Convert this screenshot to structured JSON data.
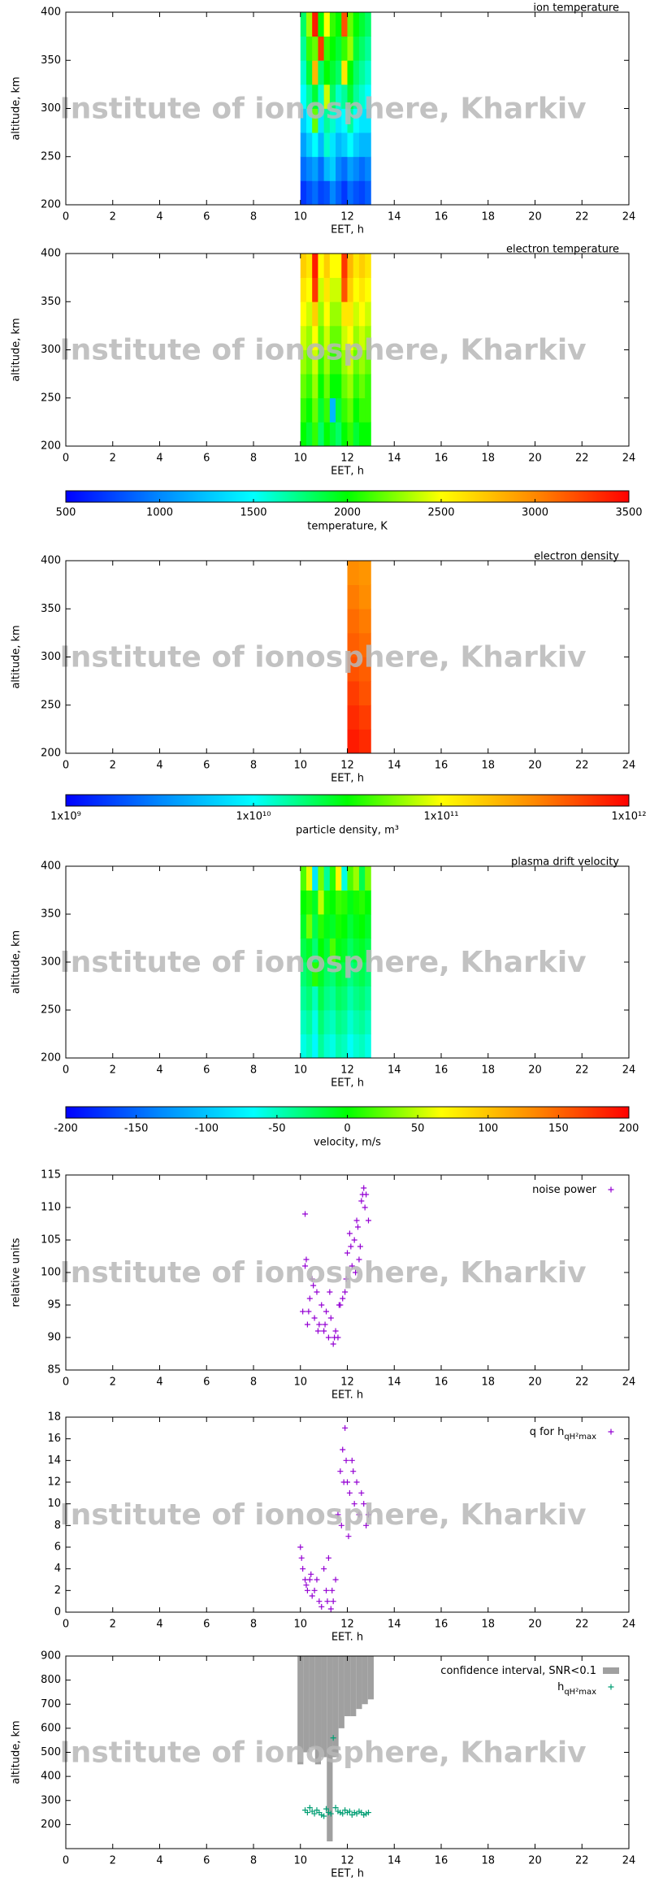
{
  "watermark": "Institute of ionosphere, Kharkiv",
  "chart_data": [
    {
      "type": "heatmap",
      "title": "ion temperature",
      "xlabel": "EET, h",
      "ylabel": "altitude, km",
      "xlim": [
        0,
        24
      ],
      "xticks": [
        0,
        2,
        4,
        6,
        8,
        10,
        12,
        14,
        16,
        18,
        20,
        22,
        24
      ],
      "ylim": [
        200,
        400
      ],
      "yticks": [
        200,
        250,
        300,
        350,
        400
      ],
      "clim": [
        500,
        3500
      ],
      "log_color": false,
      "colormap": [
        "#0000ff",
        "#0088ff",
        "#00ffff",
        "#00ff00",
        "#ffff00",
        "#ff8800",
        "#ff0000"
      ],
      "x_edges": [
        10,
        10.25,
        10.5,
        10.75,
        11,
        11.25,
        11.5,
        11.75,
        12,
        12.25,
        12.5,
        12.75,
        13
      ],
      "y_edges": [
        200,
        225,
        250,
        275,
        300,
        325,
        350,
        375,
        400
      ],
      "values": [
        [
          700,
          800,
          900,
          750,
          800,
          1000,
          850,
          700,
          900,
          800,
          750,
          850
        ],
        [
          900,
          1000,
          1100,
          900,
          1200,
          1300,
          1000,
          900,
          1100,
          1000,
          900,
          1000
        ],
        [
          1100,
          1300,
          1500,
          1200,
          1600,
          1400,
          1200,
          1300,
          1500,
          1300,
          1200,
          1200
        ],
        [
          1300,
          1500,
          2200,
          1400,
          1700,
          1600,
          1400,
          1500,
          1700,
          1500,
          1400,
          1400
        ],
        [
          1500,
          1700,
          1900,
          1600,
          2400,
          1800,
          1600,
          1700,
          1900,
          1700,
          1600,
          1500
        ],
        [
          1600,
          1900,
          2800,
          1800,
          2000,
          1900,
          1800,
          2600,
          2000,
          1800,
          1700,
          1600
        ],
        [
          1700,
          2100,
          2200,
          3300,
          2100,
          2000,
          1900,
          2100,
          2300,
          1900,
          1800,
          1700
        ],
        [
          1800,
          2300,
          3400,
          2000,
          2500,
          2100,
          2000,
          3200,
          2200,
          2000,
          1900,
          1800
        ]
      ]
    },
    {
      "type": "heatmap",
      "title": "electron temperature",
      "xlabel": "EET, h",
      "ylabel": "altitude, km",
      "xlim": [
        0,
        24
      ],
      "xticks": [
        0,
        2,
        4,
        6,
        8,
        10,
        12,
        14,
        16,
        18,
        20,
        22,
        24
      ],
      "ylim": [
        200,
        400
      ],
      "yticks": [
        200,
        250,
        300,
        350,
        400
      ],
      "clim": [
        500,
        3500
      ],
      "log_color": false,
      "colormap": [
        "#0000ff",
        "#0088ff",
        "#00ffff",
        "#00ff00",
        "#ffff00",
        "#ff8800",
        "#ff0000"
      ],
      "colorbar": {
        "label": "temperature, K",
        "ticks": [
          500,
          1000,
          1500,
          2000,
          2500,
          3000,
          3500
        ]
      },
      "x_edges": [
        10,
        10.25,
        10.5,
        10.75,
        11,
        11.25,
        11.5,
        11.75,
        12,
        12.25,
        12.5,
        12.75,
        13
      ],
      "y_edges": [
        200,
        225,
        250,
        275,
        300,
        325,
        350,
        375,
        400
      ],
      "values": [
        [
          2000,
          1900,
          2100,
          1800,
          2000,
          1900,
          1800,
          2000,
          2100,
          1900,
          2000,
          2000
        ],
        [
          2100,
          2000,
          2200,
          1900,
          2100,
          1200,
          1900,
          2100,
          2200,
          2000,
          2100,
          2100
        ],
        [
          2200,
          2100,
          2300,
          2000,
          2200,
          2000,
          2000,
          2200,
          2300,
          2100,
          2200,
          2100
        ],
        [
          2300,
          2200,
          2400,
          2100,
          2300,
          2100,
          2100,
          2300,
          2400,
          2200,
          2300,
          2200
        ],
        [
          2400,
          2300,
          2500,
          2200,
          2400,
          2200,
          2200,
          2400,
          2500,
          2300,
          2400,
          2300
        ],
        [
          2500,
          2400,
          2700,
          2300,
          2500,
          2300,
          2300,
          2600,
          2600,
          2400,
          2500,
          2400
        ],
        [
          2600,
          2500,
          3300,
          2400,
          2600,
          2400,
          2400,
          3200,
          2700,
          2500,
          2600,
          2500
        ],
        [
          2700,
          2600,
          3400,
          2500,
          2700,
          2500,
          2500,
          3300,
          2800,
          2600,
          2700,
          2600
        ]
      ]
    },
    {
      "type": "heatmap",
      "title": "electron density",
      "xlabel": "EET, h",
      "ylabel": "altitude, km",
      "xlim": [
        0,
        24
      ],
      "xticks": [
        0,
        2,
        4,
        6,
        8,
        10,
        12,
        14,
        16,
        18,
        20,
        22,
        24
      ],
      "ylim": [
        200,
        400
      ],
      "yticks": [
        200,
        250,
        300,
        350,
        400
      ],
      "clim": [
        1000000000.0,
        1000000000000.0
      ],
      "log_color": true,
      "colormap": [
        "#0000ff",
        "#0088ff",
        "#00ffff",
        "#00ff00",
        "#ffff00",
        "#ff8800",
        "#ff0000"
      ],
      "colorbar": {
        "label": "particle density, m³",
        "ticks": [
          {
            "value": 1000000000.0,
            "label": "1x10⁹"
          },
          {
            "value": 10000000000.0,
            "label": "1x10¹⁰"
          },
          {
            "value": 100000000000.0,
            "label": "1x10¹¹"
          },
          {
            "value": 1000000000000.0,
            "label": "1x10¹²"
          }
        ]
      },
      "x_edges": [
        12,
        12.25,
        12.5,
        12.75,
        13
      ],
      "y_edges": [
        200,
        225,
        250,
        275,
        300,
        325,
        350,
        375,
        400
      ],
      "values": [
        [
          800000000000.0,
          800000000000.0,
          700000000000.0,
          700000000000.0
        ],
        [
          700000000000.0,
          700000000000.0,
          600000000000.0,
          600000000000.0
        ],
        [
          600000000000.0,
          600000000000.0,
          500000000000.0,
          500000000000.0
        ],
        [
          500000000000.0,
          500000000000.0,
          450000000000.0,
          450000000000.0
        ],
        [
          450000000000.0,
          450000000000.0,
          400000000000.0,
          400000000000.0
        ],
        [
          400000000000.0,
          400000000000.0,
          350000000000.0,
          350000000000.0
        ],
        [
          350000000000.0,
          350000000000.0,
          300000000000.0,
          300000000000.0
        ],
        [
          300000000000.0,
          300000000000.0,
          280000000000.0,
          280000000000.0
        ]
      ]
    },
    {
      "type": "heatmap",
      "title": "plasma drift velocity",
      "xlabel": "EET, h",
      "ylabel": "altitude, km",
      "xlim": [
        0,
        24
      ],
      "xticks": [
        0,
        2,
        4,
        6,
        8,
        10,
        12,
        14,
        16,
        18,
        20,
        22,
        24
      ],
      "ylim": [
        200,
        400
      ],
      "yticks": [
        200,
        250,
        300,
        350,
        400
      ],
      "clim": [
        -200,
        200
      ],
      "log_color": false,
      "colormap": [
        "#0000ff",
        "#0088ff",
        "#00ffff",
        "#00ff00",
        "#ffff00",
        "#ff8800",
        "#ff0000"
      ],
      "colorbar": {
        "label": "velocity, m/s",
        "ticks": [
          -200,
          -150,
          -100,
          -50,
          0,
          50,
          100,
          150,
          200
        ]
      },
      "x_edges": [
        10,
        10.25,
        10.5,
        10.75,
        11,
        11.25,
        11.5,
        11.75,
        12,
        12.25,
        12.5,
        12.75,
        13
      ],
      "y_edges": [
        200,
        225,
        250,
        275,
        300,
        325,
        350,
        375,
        400
      ],
      "values": [
        [
          -60,
          -50,
          -70,
          -40,
          -55,
          -60,
          -45,
          -50,
          -65,
          -55,
          -50,
          -60
        ],
        [
          -50,
          -40,
          -60,
          -30,
          -45,
          -50,
          -35,
          -40,
          -55,
          -45,
          -40,
          -50
        ],
        [
          -40,
          -30,
          -50,
          -20,
          -35,
          -40,
          -25,
          -30,
          -45,
          -35,
          -30,
          -40
        ],
        [
          -30,
          -20,
          10,
          -10,
          -25,
          -30,
          -15,
          -20,
          -35,
          -25,
          -20,
          -30
        ],
        [
          -20,
          -10,
          -30,
          0,
          -15,
          20,
          -5,
          -10,
          -25,
          -15,
          -10,
          -20
        ],
        [
          -10,
          30,
          -20,
          10,
          -5,
          -10,
          5,
          0,
          -15,
          -5,
          0,
          -10
        ],
        [
          0,
          10,
          -10,
          50,
          5,
          0,
          15,
          10,
          -5,
          5,
          10,
          0
        ],
        [
          20,
          60,
          -80,
          30,
          -40,
          10,
          70,
          -60,
          20,
          40,
          -20,
          30
        ]
      ]
    },
    {
      "type": "scatter",
      "xlabel": "EET. h",
      "ylabel": "relative units",
      "legend": "upper right",
      "xlim": [
        0,
        24
      ],
      "xticks": [
        0,
        2,
        4,
        6,
        8,
        10,
        12,
        14,
        16,
        18,
        20,
        22,
        24
      ],
      "ylim": [
        85,
        115
      ],
      "yticks": [
        85,
        90,
        95,
        100,
        105,
        110,
        115
      ],
      "series": [
        {
          "name": "noise power",
          "color": "#9400d3",
          "style": "points",
          "x": [
            10.1,
            10.2,
            10.25,
            10.3,
            10.4,
            10.5,
            10.6,
            10.7,
            10.8,
            10.9,
            11.0,
            11.1,
            11.2,
            11.3,
            11.4,
            11.5,
            11.6,
            11.7,
            11.8,
            11.9,
            12.0,
            12.1,
            12.2,
            12.3,
            12.4,
            12.5,
            12.6,
            12.7,
            12.8,
            12.9,
            10.2,
            10.35,
            10.55,
            10.75,
            11.05,
            11.25,
            11.45,
            11.65,
            11.95,
            12.15,
            12.35,
            12.55,
            12.75,
            12.45,
            12.65
          ],
          "y": [
            94,
            109,
            102,
            92,
            96,
            99,
            93,
            97,
            92,
            95,
            91,
            94,
            90,
            93,
            89,
            91,
            90,
            95,
            96,
            97,
            103,
            106,
            101,
            105,
            108,
            102,
            111,
            113,
            112,
            108,
            101,
            94,
            98,
            91,
            92,
            97,
            90,
            95,
            99,
            104,
            100,
            104,
            110,
            107,
            112
          ]
        }
      ]
    },
    {
      "type": "scatter",
      "xlabel": "EET. h",
      "legend": "upper right",
      "xlim": [
        0,
        24
      ],
      "xticks": [
        0,
        2,
        4,
        6,
        8,
        10,
        12,
        14,
        16,
        18,
        20,
        22,
        24
      ],
      "ylim": [
        0,
        18
      ],
      "yticks": [
        0,
        2,
        4,
        6,
        8,
        10,
        12,
        14,
        16,
        18
      ],
      "series": [
        {
          "name": "q for h",
          "name_sub": "qH²max",
          "color": "#9400d3",
          "style": "points",
          "x": [
            10.0,
            10.1,
            10.2,
            10.3,
            10.4,
            10.5,
            10.6,
            10.7,
            10.8,
            10.9,
            11.0,
            11.1,
            11.2,
            11.3,
            11.4,
            11.5,
            11.6,
            11.7,
            11.8,
            11.9,
            12.0,
            12.1,
            12.2,
            12.3,
            12.4,
            12.5,
            12.6,
            12.7,
            12.8,
            12.9,
            10.05,
            10.25,
            10.45,
            11.15,
            11.35,
            11.75,
            11.85,
            11.95,
            12.05,
            12.25
          ],
          "y": [
            6,
            4,
            3,
            2,
            3,
            1.5,
            2,
            3,
            1,
            0.5,
            4,
            2,
            5,
            0.3,
            1,
            3,
            9,
            13,
            15,
            17,
            12,
            11,
            14,
            10,
            12,
            9,
            11,
            10,
            8,
            9,
            5,
            2.5,
            3.5,
            1,
            2,
            8,
            12,
            14,
            7,
            13
          ]
        }
      ]
    },
    {
      "type": "scatter",
      "xlabel": "EET, h",
      "ylabel": "altitude, km",
      "legend": "upper right",
      "xlim": [
        0,
        24
      ],
      "xticks": [
        0,
        2,
        4,
        6,
        8,
        10,
        12,
        14,
        16,
        18,
        20,
        22,
        24
      ],
      "ylim": [
        100,
        900
      ],
      "yticks": [
        200,
        300,
        400,
        500,
        600,
        700,
        800,
        900
      ],
      "series": [
        {
          "name": "confidence interval, SNR<0.1",
          "color": "#a0a0a0",
          "style": "band",
          "x": [
            10,
            10.25,
            10.5,
            10.75,
            11,
            11.25,
            11.5,
            11.75,
            12,
            12.25,
            12.5,
            12.75,
            13
          ],
          "low": [
            450,
            500,
            520,
            450,
            480,
            130,
            480,
            600,
            650,
            650,
            680,
            700,
            720
          ],
          "high": [
            900,
            900,
            900,
            900,
            900,
            900,
            900,
            900,
            900,
            900,
            900,
            900,
            900
          ]
        },
        {
          "name": "h",
          "name_sub": "qH²max",
          "color": "#009e73",
          "style": "points",
          "x": [
            10.2,
            10.3,
            10.4,
            10.5,
            10.6,
            10.7,
            10.8,
            10.9,
            11.0,
            11.1,
            11.2,
            11.3,
            11.4,
            11.5,
            11.6,
            11.7,
            11.8,
            11.9,
            12.0,
            12.1,
            12.2,
            12.3,
            12.4,
            12.5,
            12.6,
            12.7,
            12.8,
            12.9
          ],
          "y": [
            260,
            250,
            270,
            255,
            245,
            260,
            250,
            240,
            235,
            265,
            250,
            245,
            560,
            270,
            255,
            250,
            245,
            260,
            250,
            255,
            240,
            250,
            245,
            255,
            250,
            240,
            245,
            250
          ]
        }
      ]
    }
  ]
}
